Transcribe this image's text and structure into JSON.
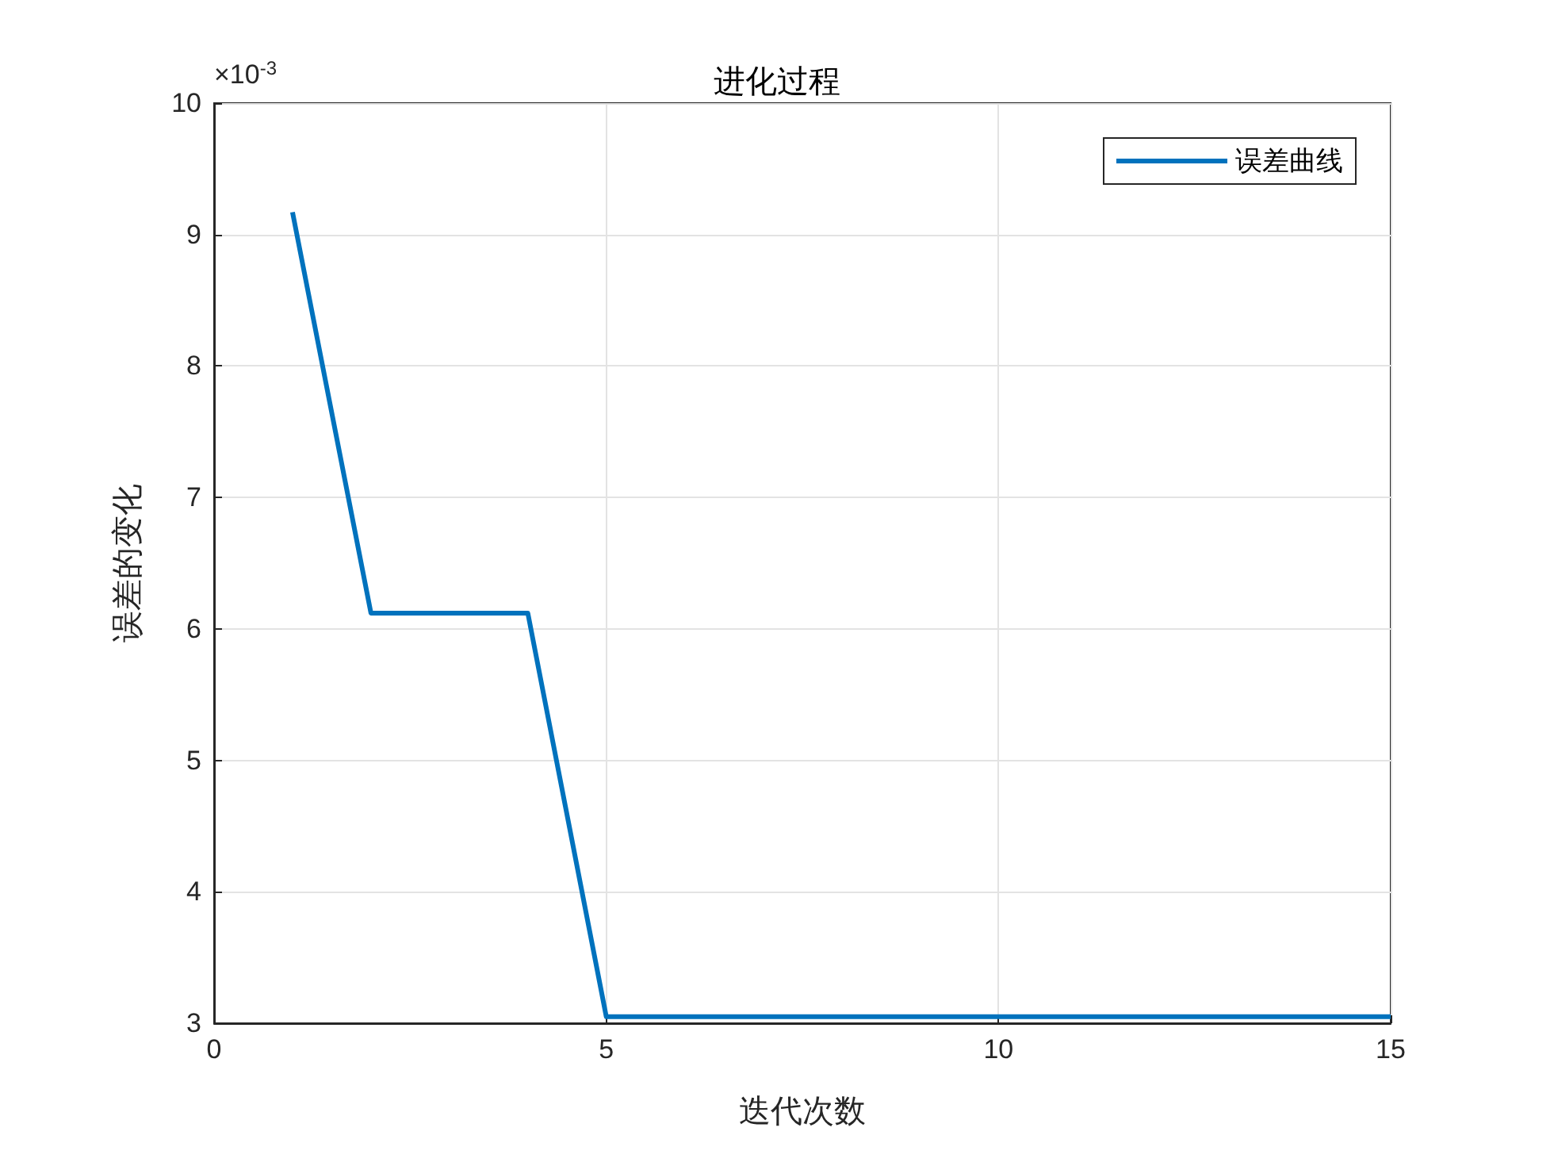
{
  "chart_data": {
    "type": "line",
    "title": "进化过程",
    "xlabel": "迭代次数",
    "ylabel": "误差的变化",
    "x": [
      1,
      2,
      3,
      4,
      5,
      6,
      7,
      8,
      9,
      10,
      11,
      12,
      13,
      14,
      15
    ],
    "series": [
      {
        "name": "误差曲线",
        "color": "#0072bd",
        "values": [
          9.17,
          6.12,
          6.12,
          6.12,
          3.05,
          3.05,
          3.05,
          3.05,
          3.05,
          3.05,
          3.05,
          3.05,
          3.05,
          3.05,
          3.05
        ]
      }
    ],
    "xlim": [
      0,
      15
    ],
    "xticks": [
      0,
      5,
      10,
      15
    ],
    "ylim": [
      3,
      10
    ],
    "yticks": [
      3,
      4,
      5,
      6,
      7,
      8,
      9,
      10
    ],
    "annotations": [
      "×10$^{-3}$"
    ],
    "grid": true,
    "legend": "top right",
    "marker": "none",
    "line_style": "solid"
  }
}
